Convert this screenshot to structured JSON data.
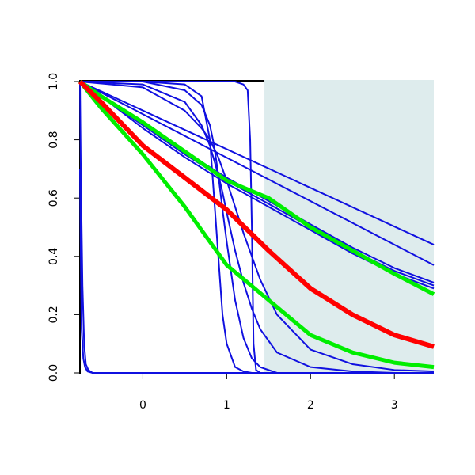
{
  "chart_data": {
    "type": "line",
    "xlim": [
      -0.75,
      3.47
    ],
    "ylim": [
      0,
      1
    ],
    "xticks": [
      0,
      1,
      2,
      3
    ],
    "yticks": [
      {
        "value": 0,
        "label": "0.0"
      },
      0.2,
      0.4,
      0.6,
      0.8,
      {
        "value": 1,
        "label": "1.0"
      }
    ],
    "shaded_region": {
      "x": [
        1.45,
        3.47
      ],
      "color": "#deeced"
    },
    "series": [
      {
        "color": "#1010e0",
        "width": 2,
        "x": [
          -0.75,
          3.47
        ],
        "values": [
          1,
          0.44
        ]
      },
      {
        "color": "#1010e0",
        "width": 2,
        "x": [
          -0.75,
          3.47
        ],
        "values": [
          1,
          0.37
        ]
      },
      {
        "color": "#1010e0",
        "width": 2,
        "x": [
          -0.75,
          -0.5,
          0,
          0.5,
          1,
          1.5,
          2,
          2.5,
          3,
          3.47
        ],
        "values": [
          1,
          0.95,
          0.85,
          0.76,
          0.67,
          0.59,
          0.51,
          0.43,
          0.36,
          0.31
        ]
      },
      {
        "color": "#1010e0",
        "width": 2,
        "x": [
          -0.75,
          -0.5,
          0,
          0.5,
          1,
          1.5,
          2,
          2.5,
          3,
          3.47
        ],
        "values": [
          1,
          0.95,
          0.85,
          0.75,
          0.66,
          0.58,
          0.5,
          0.42,
          0.35,
          0.3
        ]
      },
      {
        "color": "#1010e0",
        "width": 2,
        "x": [
          -0.75,
          -0.5,
          0,
          0.5,
          1,
          1.5,
          2,
          2.5,
          3,
          3.47
        ],
        "values": [
          1,
          0.95,
          0.84,
          0.74,
          0.65,
          0.57,
          0.49,
          0.41,
          0.34,
          0.29
        ]
      },
      {
        "color": "#1010e0",
        "width": 2,
        "x": [
          -0.75,
          0,
          0.5,
          0.7,
          0.8,
          0.85,
          0.9,
          0.95,
          1,
          1.1,
          1.2,
          1.3,
          1.4,
          1.6,
          2,
          2.5,
          3,
          3.47
        ],
        "values": [
          1,
          1,
          0.99,
          0.95,
          0.8,
          0.6,
          0.4,
          0.2,
          0.1,
          0.02,
          0.005,
          0,
          0,
          0,
          0,
          0,
          0,
          0
        ]
      },
      {
        "color": "#1010e0",
        "width": 2,
        "x": [
          -0.75,
          0,
          0.5,
          1,
          1.1,
          1.2,
          1.25,
          1.28,
          1.3,
          1.32,
          1.35,
          1.4,
          2,
          3.47
        ],
        "values": [
          1,
          1,
          1,
          1,
          1,
          0.99,
          0.97,
          0.8,
          0.5,
          0.1,
          0.01,
          0,
          0,
          0
        ]
      },
      {
        "color": "#1010e0",
        "width": 2,
        "x": [
          -0.75,
          0,
          0.5,
          0.7,
          0.8,
          0.85,
          0.9,
          0.95,
          1,
          1.1,
          1.2,
          1.3,
          1.4,
          1.6,
          2,
          2.5,
          3,
          3.47
        ],
        "values": [
          1,
          1,
          0.97,
          0.92,
          0.85,
          0.78,
          0.68,
          0.56,
          0.45,
          0.25,
          0.12,
          0.05,
          0.02,
          0,
          0,
          0,
          0,
          0
        ]
      },
      {
        "color": "#1010e0",
        "width": 2,
        "x": [
          -0.75,
          0,
          0.5,
          0.7,
          0.8,
          0.85,
          0.9,
          0.95,
          1,
          1.1,
          1.2,
          1.3,
          1.4,
          1.6,
          2,
          2.5,
          3,
          3.47
        ],
        "values": [
          1,
          0.99,
          0.93,
          0.85,
          0.78,
          0.73,
          0.68,
          0.62,
          0.55,
          0.42,
          0.31,
          0.22,
          0.15,
          0.07,
          0.02,
          0.005,
          0,
          0
        ]
      },
      {
        "color": "#1010e0",
        "width": 2,
        "x": [
          -0.75,
          0,
          0.5,
          0.7,
          0.8,
          0.85,
          0.9,
          0.95,
          1,
          1.1,
          1.2,
          1.3,
          1.4,
          1.6,
          2,
          2.5,
          3,
          3.47
        ],
        "values": [
          1,
          0.98,
          0.9,
          0.84,
          0.8,
          0.77,
          0.74,
          0.7,
          0.66,
          0.57,
          0.48,
          0.4,
          0.32,
          0.2,
          0.08,
          0.03,
          0.01,
          0.005
        ]
      },
      {
        "color": "#1010e0",
        "width": 2,
        "x": [
          -0.75,
          -0.74,
          -0.72,
          -0.7,
          -0.68,
          -0.65,
          -0.6,
          3.47
        ],
        "values": [
          1,
          0.7,
          0.3,
          0.1,
          0.03,
          0.01,
          0,
          0
        ]
      },
      {
        "color": "#1010e0",
        "width": 2,
        "x": [
          -0.75,
          -0.74,
          -0.73,
          -0.71,
          -0.69,
          -0.66,
          -0.6,
          3.47
        ],
        "values": [
          0.7,
          0.4,
          0.15,
          0.05,
          0.02,
          0.005,
          0,
          0
        ]
      },
      {
        "color": "#00ee00",
        "width": 5,
        "x": [
          -0.75,
          -0.5,
          0,
          0.5,
          1,
          1.5,
          2,
          2.5,
          3,
          3.47
        ],
        "values": [
          1,
          0.95,
          0.86,
          0.76,
          0.66,
          0.6,
          0.5,
          0.42,
          0.34,
          0.27
        ]
      },
      {
        "color": "#00ee00",
        "width": 5,
        "x": [
          -0.75,
          -0.5,
          0,
          0.5,
          1,
          1.5,
          2,
          2.5,
          3,
          3.47
        ],
        "values": [
          1,
          0.91,
          0.75,
          0.57,
          0.37,
          0.25,
          0.13,
          0.07,
          0.035,
          0.02
        ]
      },
      {
        "color": "#ff0000",
        "width": 6,
        "x": [
          -0.75,
          -0.5,
          0,
          0.5,
          1,
          1.5,
          2,
          2.5,
          3,
          3.47
        ],
        "values": [
          1,
          0.93,
          0.78,
          0.67,
          0.56,
          0.42,
          0.29,
          0.2,
          0.13,
          0.09
        ]
      }
    ]
  }
}
